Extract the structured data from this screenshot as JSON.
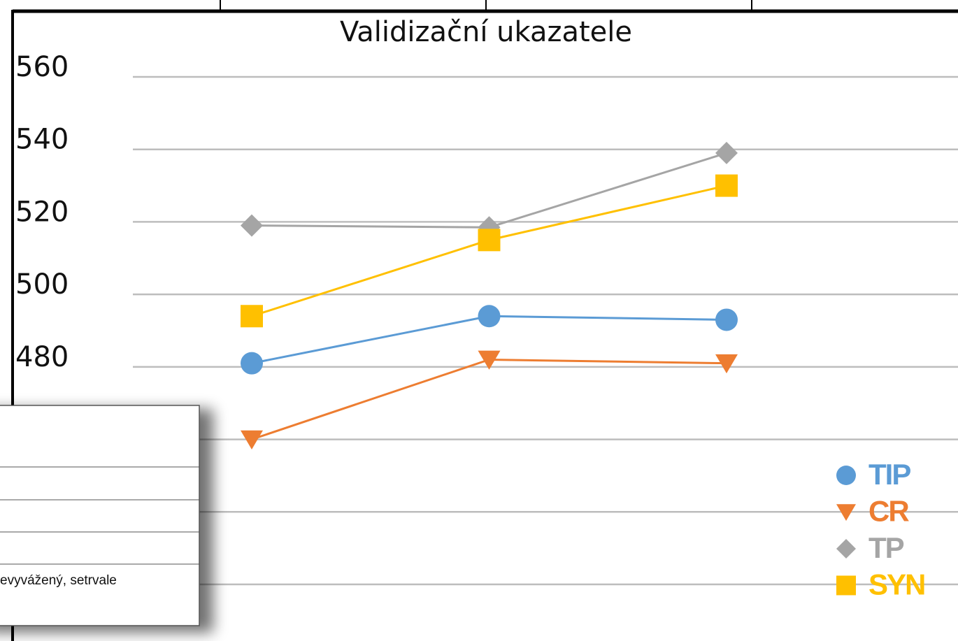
{
  "chart_data": {
    "type": "line",
    "title": "Validizační ukazatele",
    "categories": [
      null,
      null,
      null
    ],
    "series": [
      {
        "name": "TIP",
        "color": "#5b9bd5",
        "marker": "circle",
        "values": [
          481,
          494,
          493
        ]
      },
      {
        "name": "CR",
        "color": "#ed7d31",
        "marker": "triangle-down",
        "values": [
          460,
          482,
          481
        ]
      },
      {
        "name": "TP",
        "color": "#a5a5a5",
        "marker": "diamond",
        "values": [
          519,
          518.5,
          539
        ]
      },
      {
        "name": "SYN",
        "color": "#ffc000",
        "marker": "square",
        "values": [
          494,
          515,
          530
        ]
      }
    ],
    "ylim": [
      420,
      560
    ],
    "yticks": [
      420,
      440,
      460,
      480,
      500,
      520,
      540,
      560
    ],
    "grid": true,
    "legend": "right"
  },
  "overlay": {
    "text": "evyvážený, setrvale"
  }
}
